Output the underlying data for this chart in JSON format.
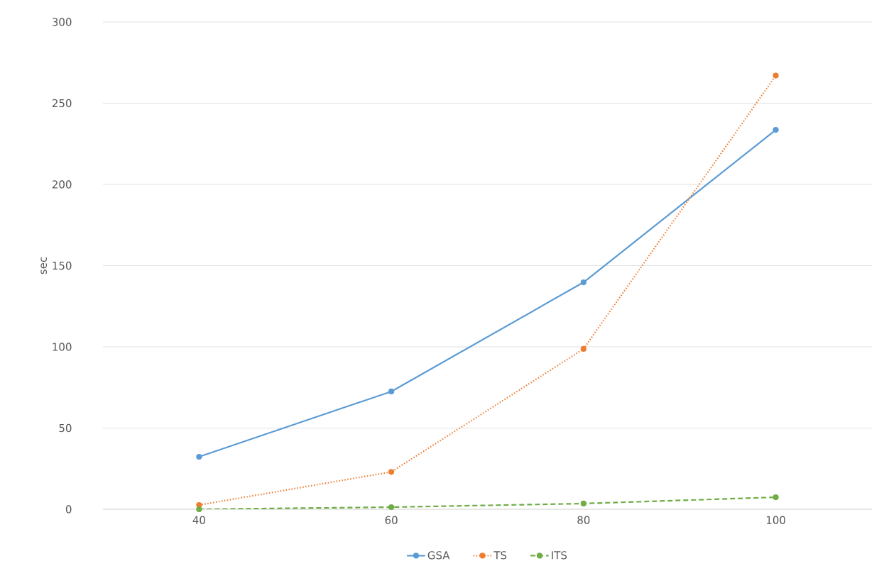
{
  "chart_data": {
    "type": "line",
    "ylabel": "sec",
    "categories": [
      "40",
      "60",
      "80",
      "100"
    ],
    "series": [
      {
        "name": "GSA",
        "color": "#5b9bd5",
        "values": [
          32.3,
          72.5,
          139.7,
          233.6
        ],
        "line_style": "solid"
      },
      {
        "name": "TS",
        "color": "#ed7d31",
        "values": [
          2.6,
          23,
          98.7,
          267
        ],
        "line_style": "dotted"
      },
      {
        "name": "ITS",
        "color": "#70ad47",
        "values": [
          0,
          1.3,
          3.5,
          7.4
        ],
        "line_style": "dashed"
      }
    ],
    "ylim": [
      0,
      300
    ],
    "yticks": [
      0,
      50,
      100,
      150,
      200,
      250,
      300
    ],
    "grid": "y",
    "legend": "bottom",
    "marker": "circle"
  }
}
